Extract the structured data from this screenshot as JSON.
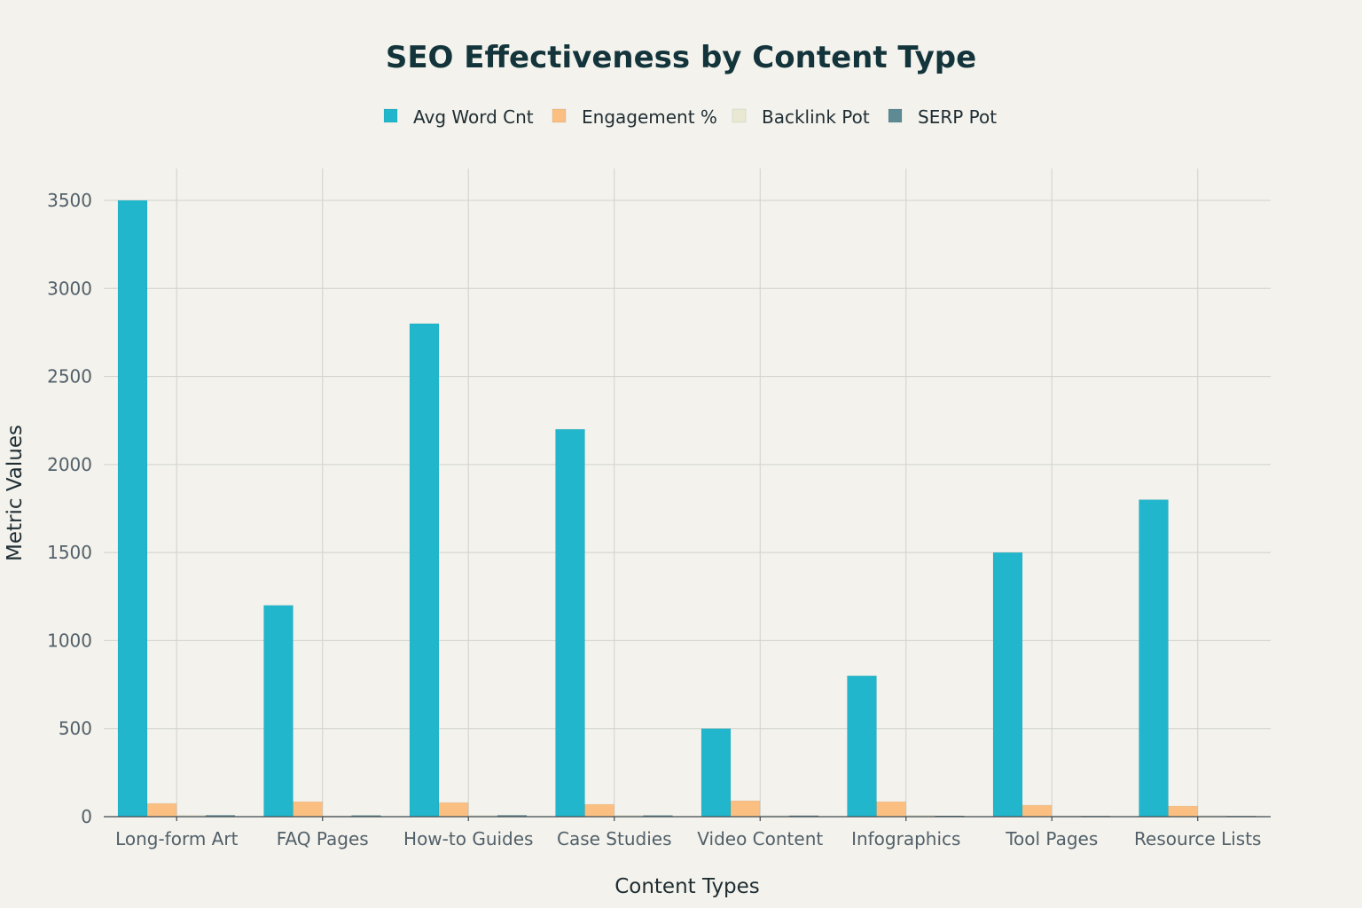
{
  "chart_data": {
    "type": "bar",
    "title": "SEO Effectiveness by Content Type",
    "xlabel": "Content Types",
    "ylabel": "Metric Values",
    "ylim": [
      0,
      3700
    ],
    "yticks": [
      0,
      500,
      1000,
      1500,
      2000,
      2500,
      3000,
      3500
    ],
    "grid": true,
    "legend_position": "top-center",
    "categories": [
      "Long-form Art",
      "FAQ Pages",
      "How-to Guides",
      "Case Studies",
      "Video Content",
      "Infographics",
      "Tool Pages",
      "Resource Lists"
    ],
    "series": [
      {
        "name": "Avg Word Cnt",
        "color": "#21b6cc",
        "values": [
          3500,
          1200,
          2800,
          2200,
          500,
          800,
          1500,
          1800
        ]
      },
      {
        "name": "Engagement %",
        "color": "#fbbf82",
        "values": [
          75,
          85,
          80,
          70,
          90,
          85,
          65,
          60
        ]
      },
      {
        "name": "Backlink Pot",
        "color": "#e9e8d3",
        "values": [
          9,
          5,
          7,
          8,
          6,
          8,
          5,
          6
        ]
      },
      {
        "name": "SERP Pot",
        "color": "#5e8a93",
        "values": [
          8,
          7,
          8,
          7,
          6,
          5,
          4,
          4
        ]
      }
    ]
  }
}
